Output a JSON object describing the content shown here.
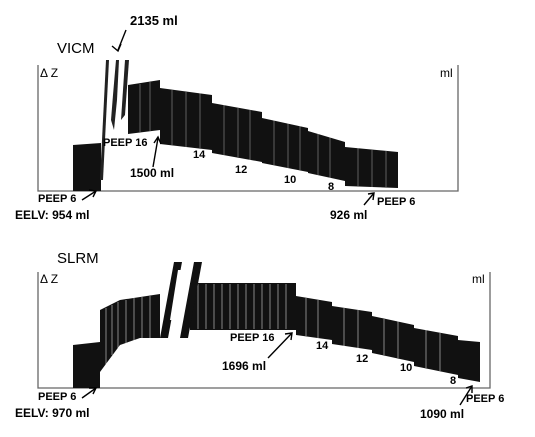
{
  "chart_data": [
    {
      "type": "area",
      "title": "VICM",
      "ylabel": "Δ Z",
      "yunit": "ml",
      "segments": [
        {
          "label": "PEEP 6",
          "values": [
            0.4,
            0.45
          ]
        },
        {
          "label": "PEEP 16",
          "values": [
            0.92,
            0.88
          ]
        },
        {
          "label": "14",
          "values": [
            0.85,
            0.8
          ]
        },
        {
          "label": "12",
          "values": [
            0.72,
            0.68
          ]
        },
        {
          "label": "10",
          "values": [
            0.6,
            0.55
          ]
        },
        {
          "label": "8",
          "values": [
            0.46,
            0.42
          ]
        },
        {
          "label": "PEEP 6",
          "values": [
            0.28,
            0.25
          ]
        }
      ],
      "annotations": {
        "peak": "2135 ml",
        "peep16_value": "1500 ml",
        "start_peep": "PEEP 6",
        "start_eelv": "EELV: 954 ml",
        "end_peep": "PEEP 6",
        "end_value": "926 ml"
      }
    },
    {
      "type": "area",
      "title": "SLRM",
      "ylabel": "Δ Z",
      "yunit": "ml",
      "segments": [
        {
          "label": "PEEP 6",
          "values": [
            0.42,
            0.48
          ]
        },
        {
          "label": "PEEP 16",
          "values": [
            0.95,
            0.9
          ]
        },
        {
          "label": "14",
          "values": [
            0.78,
            0.72
          ]
        },
        {
          "label": "12",
          "values": [
            0.62,
            0.58
          ]
        },
        {
          "label": "10",
          "values": [
            0.5,
            0.45
          ]
        },
        {
          "label": "8",
          "values": [
            0.38,
            0.32
          ]
        },
        {
          "label": "PEEP 6",
          "values": [
            0.28,
            0.22
          ]
        }
      ],
      "annotations": {
        "peep16_value": "1696 ml",
        "start_peep": "PEEP 6",
        "start_eelv": "EELV: 970 ml",
        "end_peep": "PEEP 6",
        "end_value": "1090 ml"
      }
    }
  ]
}
